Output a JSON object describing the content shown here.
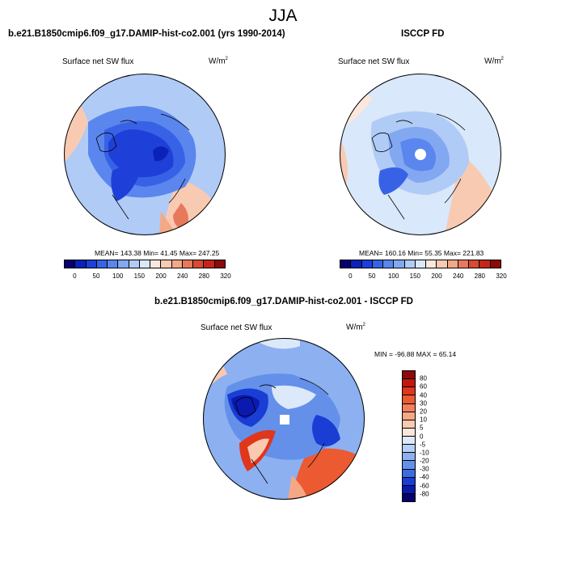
{
  "title": "JJA",
  "panels": [
    {
      "header": "b.e21.B1850cmip6.f09_g17.DAMIP-hist-co2.001 (yrs 1990-2014)",
      "variable": "Surface net SW flux",
      "units": "W/m",
      "units_exp": "2",
      "stats": "MEAN= 143.38  Min=  41.45  Max= 247.25",
      "stats_values": {
        "mean": 143.38,
        "min": 41.45,
        "max": 247.25
      }
    },
    {
      "header": "ISCCP FD",
      "variable": "Surface net SW flux",
      "units": "W/m",
      "units_exp": "2",
      "stats": "MEAN= 160.16  Min=  55.35  Max= 221.83",
      "stats_values": {
        "mean": 160.16,
        "min": 55.35,
        "max": 221.83
      }
    },
    {
      "header": "b.e21.B1850cmip6.f09_g17.DAMIP-hist-co2.001 - ISCCP FD",
      "variable": "Surface net SW flux",
      "units": "W/m",
      "units_exp": "2",
      "stats": "MIN = -96.88 MAX =  65.14",
      "stats_values": {
        "min": -96.88,
        "max": 65.14
      }
    }
  ],
  "colorbar_abs": {
    "ticks": [
      "0",
      "50",
      "100",
      "150",
      "200",
      "240",
      "280",
      "320"
    ],
    "colors": [
      "#08006b",
      "#0a22b8",
      "#1e40d8",
      "#3862e6",
      "#5a86ee",
      "#82a8f2",
      "#b0cbf6",
      "#d9e8fa",
      "#fbe7dc",
      "#f9cab2",
      "#f4a888",
      "#e8785c",
      "#d84a34",
      "#c2261a",
      "#8c0a08"
    ]
  },
  "colorbar_diff": {
    "ticks": [
      "80",
      "60",
      "40",
      "30",
      "20",
      "10",
      "5",
      "0",
      "-5",
      "-10",
      "-20",
      "-30",
      "-40",
      "-60",
      "-80"
    ],
    "colors": [
      "#8c0a08",
      "#c2180e",
      "#e0361c",
      "#ec5a32",
      "#f2805c",
      "#f6a886",
      "#f9c9b0",
      "#fbe6dc",
      "#dce9fa",
      "#b6cff6",
      "#8cb0f0",
      "#6490ea",
      "#3c6ce2",
      "#1a3ed4",
      "#0a1ab0",
      "#08006b"
    ]
  }
}
